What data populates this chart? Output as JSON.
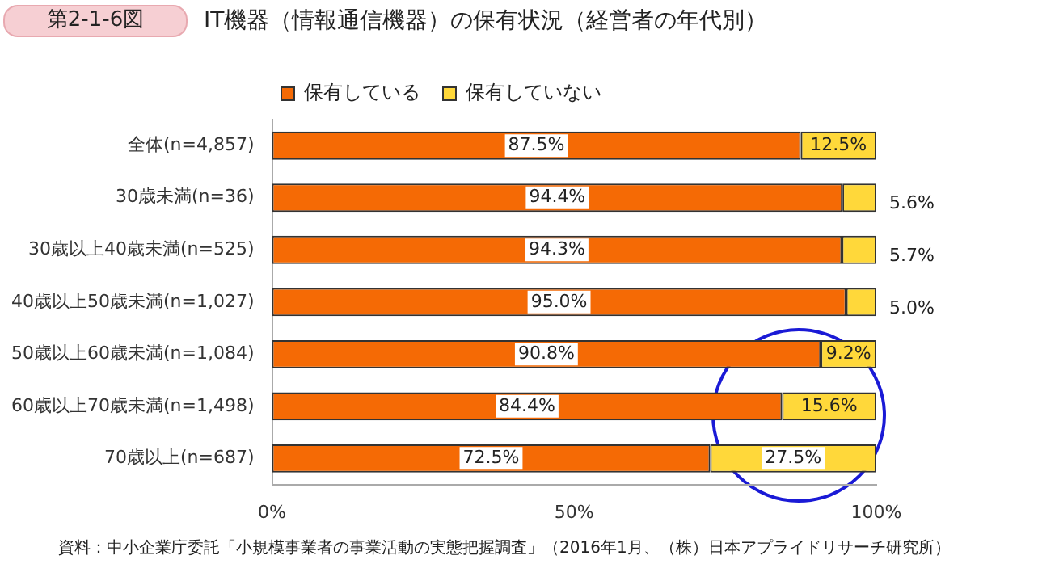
{
  "chart_data": {
    "type": "bar",
    "orientation": "horizontal",
    "stacked": true,
    "title": "IT機器（情報通信機器）の保有状況（経営者の年代別）",
    "annotations": [
      "第2-1-6図",
      "資料：中小企業庁委託「小規模事業者の事業活動の実態把握調査」（2016年1月、（株）日本アプライドリサーチ研究所）"
    ],
    "categories": [
      "全体(n=4,857)",
      "30歳未満(n=36)",
      "30歳以上40歳未満(n=525)",
      "40歳以上50歳未満(n=1,027)",
      "50歳以上60歳未満(n=1,084)",
      "60歳以上70歳未満(n=1,498)",
      "70歳以上(n=687)"
    ],
    "series": [
      {
        "name": "保有している",
        "color": "#f56a05",
        "values": [
          87.5,
          94.4,
          94.3,
          95.0,
          90.8,
          84.4,
          72.5
        ]
      },
      {
        "name": "保有していない",
        "color": "#ffd83a",
        "values": [
          12.5,
          5.6,
          5.7,
          5.0,
          9.2,
          15.6,
          27.5
        ]
      }
    ],
    "xlim": [
      0,
      100
    ],
    "xticks": [
      {
        "value": 0,
        "label": "0%"
      },
      {
        "value": 50,
        "label": "50%"
      },
      {
        "value": 100,
        "label": "100%"
      }
    ],
    "value_labels": [
      [
        "87.5%",
        "94.4%",
        "94.3%",
        "95.0%",
        "90.8%",
        "84.4%",
        "72.5%"
      ],
      [
        "12.5%",
        "5.6%",
        "5.7%",
        "5.0%",
        "9.2%",
        "15.6%",
        "27.5%"
      ]
    ],
    "legend": "top",
    "grid": false
  }
}
